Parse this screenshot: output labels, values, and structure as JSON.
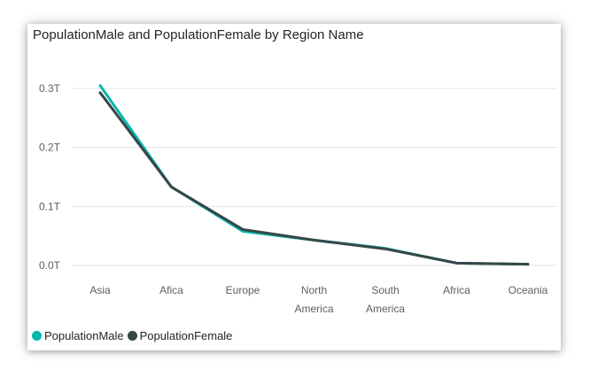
{
  "chart_data": {
    "type": "line",
    "title": "PopulationMale and PopulationFemale by Region Name",
    "xlabel": "",
    "ylabel": "",
    "categories": [
      "Asia",
      "Afica",
      "Europe",
      "North America",
      "South America",
      "Africa",
      "Oceania"
    ],
    "series": [
      {
        "name": "PopulationMale",
        "color": "#01B8AA",
        "values": [
          0.305,
          0.133,
          0.058,
          0.043,
          0.029,
          0.004,
          0.002
        ]
      },
      {
        "name": "PopulationFemale",
        "color": "#374649",
        "values": [
          0.293,
          0.133,
          0.061,
          0.043,
          0.028,
          0.004,
          0.002
        ]
      }
    ],
    "y_ticks": [
      "0.0T",
      "0.1T",
      "0.2T",
      "0.3T"
    ],
    "y_tick_values": [
      0,
      0.1,
      0.2,
      0.3
    ],
    "ylim": [
      0,
      0.3
    ],
    "grid": true,
    "legend_position": "bottom-left"
  }
}
